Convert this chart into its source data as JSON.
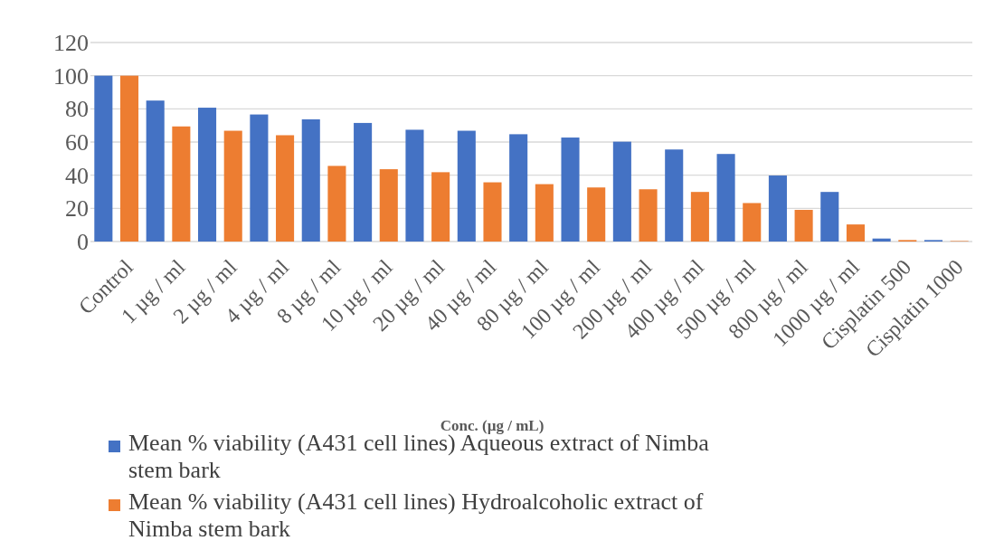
{
  "chart_data": {
    "type": "bar",
    "xlabel": "Conc. (µg / mL)",
    "categories": [
      "Control",
      "1 µg / ml",
      "2 µg / ml",
      "4 µg / ml",
      "8 µg / ml",
      "10 µg / ml",
      "20 µg / ml",
      "40 µg / ml",
      "80 µg / ml",
      "100 µg / ml",
      "200 µg / ml",
      "400 µg / ml",
      "500 µg / ml",
      "800 µg / ml",
      "1000 µg / ml",
      "Cisplatin 500",
      "Cisplatin 1000"
    ],
    "series": [
      {
        "name": "Mean % viability (A431 cell lines) Aqueous extract of Nimba stem bark",
        "color": "#4472c4",
        "values": [
          100,
          85,
          80.7,
          76.6,
          73.7,
          71.5,
          67.4,
          66.8,
          64.7,
          62.7,
          60.2,
          55.5,
          52.8,
          39.8,
          29.9,
          1.8,
          0.9
        ]
      },
      {
        "name": "Mean % viability (A431 cell lines) Hydroalcoholic extract of Nimba stem bark",
        "color": "#ed7d31",
        "values": [
          100,
          69.4,
          66.8,
          64.1,
          45.6,
          43.6,
          41.8,
          35.7,
          34.6,
          32.6,
          31.5,
          29.9,
          23.2,
          19.1,
          10.3,
          0.9,
          0.3
        ]
      }
    ],
    "ylim": [
      0,
      120
    ],
    "yticks": [
      0,
      20,
      40,
      60,
      80,
      100,
      120
    ],
    "grid": "y",
    "legend": "bottom"
  }
}
